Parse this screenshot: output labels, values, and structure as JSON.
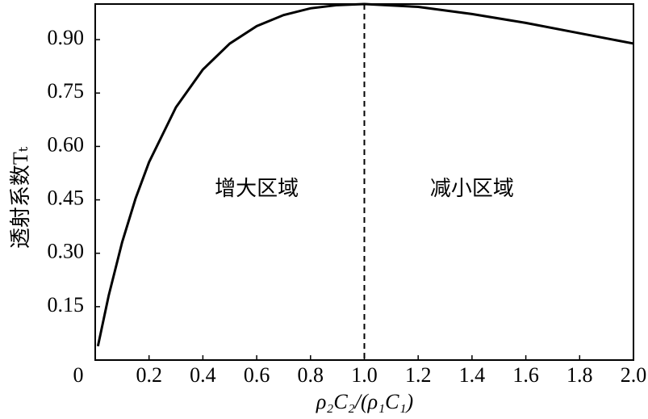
{
  "chart_data": {
    "type": "line",
    "x_label": "ρ₂C₂/(ρ₁C₁)",
    "y_label": "透射系数Tₜ",
    "x": [
      0.01,
      0.05,
      0.1,
      0.15,
      0.2,
      0.3,
      0.4,
      0.5,
      0.6,
      0.7,
      0.8,
      0.9,
      1.0,
      1.2,
      1.4,
      1.6,
      1.8,
      2.0
    ],
    "series": [
      {
        "color": "#000000",
        "values": [
          0.039,
          0.181,
          0.331,
          0.454,
          0.556,
          0.71,
          0.816,
          0.889,
          0.938,
          0.969,
          0.988,
          0.997,
          1.0,
          0.992,
          0.972,
          0.947,
          0.918,
          0.889
        ]
      }
    ],
    "xlim": [
      0,
      2.0
    ],
    "ylim": [
      0,
      1.0
    ],
    "xticks": [
      0,
      0.2,
      0.4,
      0.6,
      0.8,
      {
        "value": 1.0,
        "label": "1.0"
      },
      1.2,
      1.4,
      1.6,
      1.8,
      {
        "value": 2.0,
        "label": "2.0"
      }
    ],
    "yticks": [
      0.15,
      {
        "value": 0.3,
        "label": "0.30"
      },
      0.45,
      {
        "value": 0.6,
        "label": "0.60"
      },
      0.75,
      {
        "value": 0.9,
        "label": "0.90"
      }
    ],
    "vline": 1.0,
    "annotations": [
      {
        "text": "增大区域",
        "x": 0.6,
        "y": 0.48
      },
      {
        "text": "减小区域",
        "x": 1.4,
        "y": 0.48
      }
    ],
    "grid": false
  }
}
